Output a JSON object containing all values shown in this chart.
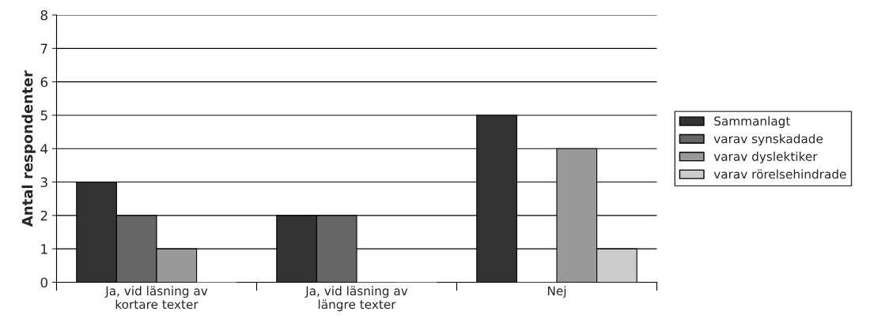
{
  "chart_data": {
    "type": "bar",
    "ylabel": "Antal respondenter",
    "categories": [
      "Ja, vid läsning av\nkortare texter",
      "Ja, vid läsning av\nlängre texter",
      "Nej"
    ],
    "series": [
      {
        "name": "Sammanlagt",
        "color": "#333333",
        "values": [
          3,
          2,
          5
        ]
      },
      {
        "name": "varav synskadade",
        "color": "#666666",
        "values": [
          2,
          2,
          0
        ]
      },
      {
        "name": "varav dyslektiker",
        "color": "#999999",
        "values": [
          1,
          0,
          4
        ]
      },
      {
        "name": "varav rörelsehindrade",
        "color": "#cccccc",
        "values": [
          0,
          0,
          1
        ]
      }
    ],
    "ylim": [
      0,
      8
    ],
    "yticks": [
      0,
      1,
      2,
      3,
      4,
      5,
      6,
      7,
      8
    ],
    "grid": "y",
    "legend": "right"
  }
}
